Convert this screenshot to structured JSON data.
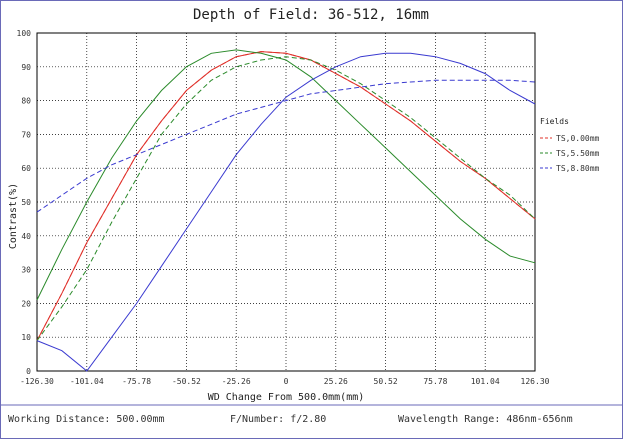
{
  "chart_data": {
    "type": "line",
    "title": "Depth of Field: 36-512, 16mm",
    "xlabel": "WD Change From 500.0mm(mm)",
    "ylabel": "Contrast(%)",
    "xlim": [
      -126.3,
      126.3
    ],
    "ylim": [
      0,
      100
    ],
    "x_ticks": [
      "-126.30",
      "-101.04",
      "-75.78",
      "-50.52",
      "-25.26",
      "0",
      "25.26",
      "50.52",
      "75.78",
      "101.04",
      "126.30"
    ],
    "y_ticks": [
      "0",
      "10",
      "20",
      "30",
      "40",
      "50",
      "60",
      "70",
      "80",
      "90",
      "100"
    ],
    "grid": true,
    "legend_title": "Fields",
    "legend_placement": "right",
    "series": [
      {
        "name": "TS,0.00mm",
        "color": "#e0302a",
        "style": "solid",
        "x": [
          -126.3,
          -113.67,
          -101.04,
          -88.41,
          -75.78,
          -63.15,
          -50.52,
          -37.89,
          -25.26,
          -12.63,
          0,
          12.63,
          25.26,
          37.89,
          50.52,
          63.15,
          75.78,
          88.41,
          101.04,
          113.67,
          126.3
        ],
        "y": [
          9,
          23,
          38,
          51,
          64,
          74,
          83,
          89,
          93,
          94.5,
          94,
          92,
          88,
          84,
          79,
          74,
          68,
          62,
          57,
          51,
          45
        ]
      },
      {
        "name": "TS,0.00mm",
        "color": "#e0302a",
        "style": "dashed",
        "x": [
          -126.3,
          -113.67,
          -101.04,
          -88.41,
          -75.78,
          -63.15,
          -50.52,
          -37.89,
          -25.26,
          -12.63,
          0,
          12.63,
          25.26,
          37.89,
          50.52,
          63.15,
          75.78,
          88.41,
          101.04,
          113.67,
          126.3
        ],
        "y": [
          9,
          23,
          38,
          51,
          64,
          74,
          83,
          89,
          93,
          94.5,
          94,
          92,
          88,
          84,
          79,
          74,
          68,
          62,
          57,
          51,
          45
        ]
      },
      {
        "name": "TS,5.50mm",
        "color": "#2a8a2a",
        "style": "solid",
        "x": [
          -126.3,
          -113.67,
          -101.04,
          -88.41,
          -75.78,
          -63.15,
          -50.52,
          -37.89,
          -25.26,
          -12.63,
          0,
          12.63,
          25.26,
          37.89,
          50.52,
          63.15,
          75.78,
          88.41,
          101.04,
          113.67,
          126.3
        ],
        "y": [
          21,
          36,
          50,
          63,
          74,
          83,
          90,
          94,
          95,
          94,
          92,
          87,
          80,
          73,
          66,
          59,
          52,
          45,
          39,
          34,
          32
        ]
      },
      {
        "name": "TS,5.50mm",
        "color": "#2a8a2a",
        "style": "dashed",
        "x": [
          -126.3,
          -113.67,
          -101.04,
          -88.41,
          -75.78,
          -63.15,
          -50.52,
          -37.89,
          -25.26,
          -12.63,
          0,
          12.63,
          25.26,
          37.89,
          50.52,
          63.15,
          75.78,
          88.41,
          101.04,
          113.67,
          126.3
        ],
        "y": [
          9,
          19,
          30,
          44,
          57,
          70,
          79,
          86,
          90,
          92,
          93,
          92,
          89,
          85,
          80,
          75,
          69,
          63,
          57,
          52,
          45
        ]
      },
      {
        "name": "TS,8.80mm",
        "color": "#3a3ad0",
        "style": "solid",
        "x": [
          -126.3,
          -113.67,
          -101.04,
          -88.41,
          -75.78,
          -63.15,
          -50.52,
          -37.89,
          -25.26,
          -12.63,
          0,
          12.63,
          25.26,
          37.89,
          50.52,
          63.15,
          75.78,
          88.41,
          101.04,
          113.67,
          126.3
        ],
        "y": [
          9,
          6,
          0,
          10,
          20,
          31,
          42,
          53,
          64,
          73,
          81,
          86,
          90,
          93,
          94,
          94,
          93,
          91,
          88,
          83,
          79
        ]
      },
      {
        "name": "TS,8.80mm",
        "color": "#3a3ad0",
        "style": "dashed",
        "x": [
          -126.3,
          -113.67,
          -101.04,
          -88.41,
          -75.78,
          -63.15,
          -50.52,
          -37.89,
          -25.26,
          -12.63,
          0,
          12.63,
          25.26,
          37.89,
          50.52,
          63.15,
          75.78,
          88.41,
          101.04,
          113.67,
          126.3
        ],
        "y": [
          47,
          52,
          57,
          61,
          64,
          67,
          70,
          73,
          76,
          78,
          80,
          82,
          83,
          84,
          85,
          85.5,
          86,
          86,
          86,
          86,
          85.5
        ]
      }
    ],
    "legend": [
      {
        "label": "TS,0.00mm",
        "color": "#e0302a"
      },
      {
        "label": "TS,5.50mm",
        "color": "#2a8a2a"
      },
      {
        "label": "TS,8.80mm",
        "color": "#3a3ad0"
      }
    ]
  },
  "footer": {
    "working_distance": "Working Distance: 500.00mm",
    "f_number": "F/Number: f/2.80",
    "wavelength": "Wavelength Range: 486nm-656nm"
  }
}
